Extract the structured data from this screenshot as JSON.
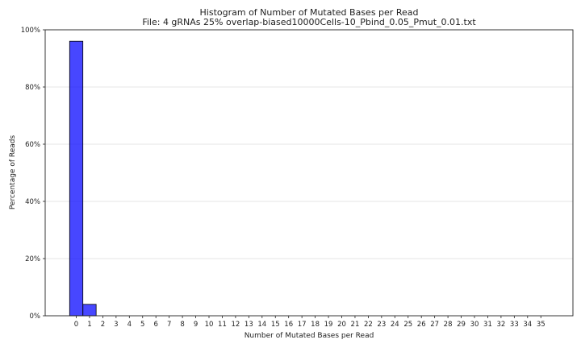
{
  "chart_data": {
    "type": "bar",
    "title": "Histogram of Number of Mutated Bases per Read",
    "subtitle": "File: 4 gRNAs 25% overlap-biased10000Cells-10_Pbind_0.05_Pmut_0.01.txt",
    "xlabel": "Number of Mutated Bases per Read",
    "ylabel": "Percentage of Reads",
    "categories": [
      "0",
      "1",
      "2",
      "3",
      "4",
      "5",
      "6",
      "7",
      "8",
      "9",
      "10",
      "11",
      "12",
      "13",
      "14",
      "15",
      "16",
      "17",
      "18",
      "19",
      "20",
      "21",
      "22",
      "23",
      "24",
      "25",
      "26",
      "27",
      "28",
      "29",
      "30",
      "31",
      "32",
      "33",
      "34",
      "35"
    ],
    "values": [
      96.0,
      4.0,
      0,
      0,
      0,
      0,
      0,
      0,
      0,
      0,
      0,
      0,
      0,
      0,
      0,
      0,
      0,
      0,
      0,
      0,
      0,
      0,
      0,
      0,
      0,
      0,
      0,
      0,
      0,
      0,
      0,
      0,
      0,
      0,
      0,
      0
    ],
    "ylim": [
      0,
      100
    ],
    "yticks": [
      "0%",
      "20%",
      "40%",
      "60%",
      "80%",
      "100%"
    ],
    "ytick_values": [
      0,
      20,
      40,
      60,
      80,
      100
    ],
    "grid": "horizontal",
    "bar_color": "#0000ff",
    "bar_edge_color": "#000000",
    "grid_color": "#dddddd",
    "axis_color": "#222222"
  }
}
